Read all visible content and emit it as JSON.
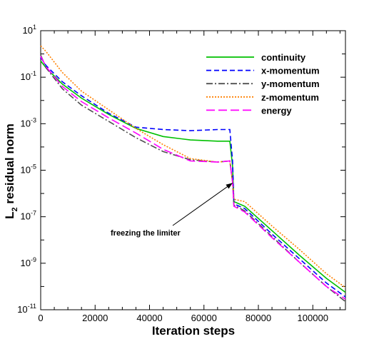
{
  "chart_data": {
    "type": "line",
    "title": "",
    "xlabel": "Iteration steps",
    "ylabel": "L2 residual norm",
    "ylabel_main": "L",
    "ylabel_sub": "2",
    "ylabel_rest": " residual norm",
    "yscale": "log",
    "xlim": [
      0,
      112000
    ],
    "ylim_exponents": [
      -11,
      1
    ],
    "x_ticks": [
      0,
      20000,
      40000,
      60000,
      80000,
      100000
    ],
    "x_tick_labels": [
      "0",
      "20000",
      "40000",
      "60000",
      "80000",
      "100000"
    ],
    "y_ticks_exponent": [
      1,
      -1,
      -3,
      -5,
      -7,
      -9,
      -11
    ],
    "grid": false,
    "legend_position": "top-right",
    "series": [
      {
        "name": "continuity",
        "color": "#00c000",
        "dash": "solid",
        "points": [
          [
            0,
            -0.3
          ],
          [
            2000,
            -0.6
          ],
          [
            8000,
            -1.3
          ],
          [
            15000,
            -1.9
          ],
          [
            25000,
            -2.6
          ],
          [
            35000,
            -3.2
          ],
          [
            45000,
            -3.55
          ],
          [
            55000,
            -3.7
          ],
          [
            65000,
            -3.75
          ],
          [
            69500,
            -3.75
          ],
          [
            70500,
            -4.8
          ],
          [
            71000,
            -6.35
          ],
          [
            75000,
            -6.55
          ],
          [
            85000,
            -7.6
          ],
          [
            95000,
            -8.65
          ],
          [
            105000,
            -9.65
          ],
          [
            112000,
            -10.25
          ]
        ]
      },
      {
        "name": "x-momentum",
        "color": "#0000ff",
        "dash": "7,4",
        "points": [
          [
            0,
            -0.15
          ],
          [
            2000,
            -0.5
          ],
          [
            8000,
            -1.2
          ],
          [
            15000,
            -1.8
          ],
          [
            25000,
            -2.55
          ],
          [
            35000,
            -3.15
          ],
          [
            45000,
            -3.25
          ],
          [
            55000,
            -3.3
          ],
          [
            65000,
            -3.25
          ],
          [
            69500,
            -3.25
          ],
          [
            70500,
            -4.6
          ],
          [
            71000,
            -6.45
          ],
          [
            75000,
            -6.65
          ],
          [
            85000,
            -7.75
          ],
          [
            95000,
            -8.8
          ],
          [
            105000,
            -9.85
          ],
          [
            112000,
            -10.45
          ]
        ]
      },
      {
        "name": "y-momentum",
        "color": "#505050",
        "dash": "9,3,2,3",
        "points": [
          [
            0,
            -0.05
          ],
          [
            2000,
            -0.6
          ],
          [
            8000,
            -1.5
          ],
          [
            15000,
            -2.2
          ],
          [
            25000,
            -2.9
          ],
          [
            35000,
            -3.6
          ],
          [
            45000,
            -4.2
          ],
          [
            55000,
            -4.55
          ],
          [
            65000,
            -4.65
          ],
          [
            69500,
            -4.6
          ],
          [
            70500,
            -5.5
          ],
          [
            71000,
            -6.5
          ],
          [
            75000,
            -6.75
          ],
          [
            85000,
            -7.85
          ],
          [
            95000,
            -8.95
          ],
          [
            105000,
            -10.0
          ],
          [
            112000,
            -10.65
          ]
        ]
      },
      {
        "name": "z-momentum",
        "color": "#ff8000",
        "dash": "2,2",
        "points": [
          [
            0,
            0.35
          ],
          [
            2000,
            0.1
          ],
          [
            8000,
            -0.8
          ],
          [
            15000,
            -1.6
          ],
          [
            25000,
            -2.4
          ],
          [
            35000,
            -3.2
          ],
          [
            45000,
            -3.9
          ],
          [
            55000,
            -4.5
          ],
          [
            65000,
            -4.65
          ],
          [
            69500,
            -4.6
          ],
          [
            70500,
            -5.5
          ],
          [
            71000,
            -6.25
          ],
          [
            75000,
            -6.35
          ],
          [
            85000,
            -7.4
          ],
          [
            95000,
            -8.4
          ],
          [
            105000,
            -9.45
          ],
          [
            112000,
            -10.05
          ]
        ]
      },
      {
        "name": "energy",
        "color": "#ff00ff",
        "dash": "12,5",
        "points": [
          [
            0,
            -0.1
          ],
          [
            2000,
            -0.55
          ],
          [
            8000,
            -1.4
          ],
          [
            15000,
            -2.05
          ],
          [
            25000,
            -2.75
          ],
          [
            35000,
            -3.4
          ],
          [
            45000,
            -4.1
          ],
          [
            55000,
            -4.6
          ],
          [
            65000,
            -4.65
          ],
          [
            69500,
            -4.6
          ],
          [
            70500,
            -5.5
          ],
          [
            71000,
            -6.55
          ],
          [
            75000,
            -6.8
          ],
          [
            85000,
            -7.9
          ],
          [
            95000,
            -8.95
          ],
          [
            105000,
            -10.0
          ],
          [
            112000,
            -10.55
          ]
        ]
      }
    ],
    "annotation": {
      "text": "freezing the limiter",
      "arrow_to": [
        70500,
        -5.55
      ]
    }
  }
}
